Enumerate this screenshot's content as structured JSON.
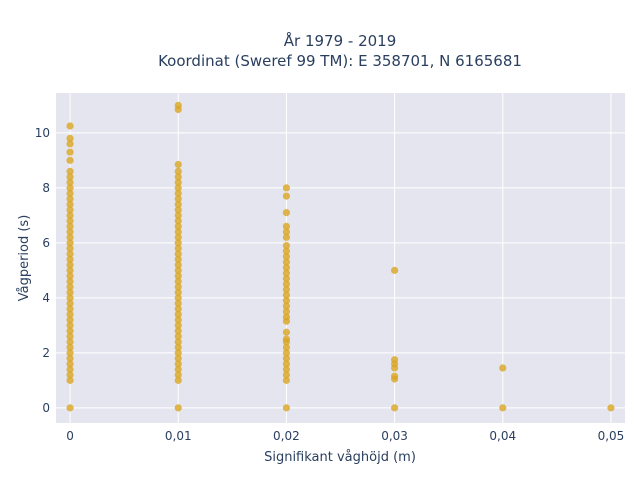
{
  "chart_data": {
    "type": "scatter",
    "title_line1": "År 1979 - 2019",
    "title_line2": "Koordinat (Sweref 99 TM): E 358701, N 6165681",
    "xlabel": "Signifikant våghöjd (m)",
    "ylabel": "Vågperiod (s)",
    "x_ticks": [
      0,
      0.01,
      0.02,
      0.03,
      0.04,
      0.05
    ],
    "x_tick_labels": [
      "0",
      "0,01",
      "0,02",
      "0,03",
      "0,04",
      "0,05"
    ],
    "y_ticks": [
      0,
      2,
      4,
      6,
      8,
      10
    ],
    "y_tick_labels": [
      "0",
      "2",
      "4",
      "6",
      "8",
      "10"
    ],
    "xlim": [
      -0.0013,
      0.0513
    ],
    "ylim": [
      -0.55,
      11.45
    ],
    "grid": true,
    "marker_color": "#DAA520",
    "plot_background": "#E5E5F0",
    "series": [
      {
        "points": [
          {
            "x": 0,
            "y": 0
          },
          {
            "x": 0,
            "y": 1.0
          },
          {
            "x": 0,
            "y": 1.2
          },
          {
            "x": 0,
            "y": 1.4
          },
          {
            "x": 0,
            "y": 1.6
          },
          {
            "x": 0,
            "y": 1.8
          },
          {
            "x": 0,
            "y": 2.0
          },
          {
            "x": 0,
            "y": 2.2
          },
          {
            "x": 0,
            "y": 2.4
          },
          {
            "x": 0,
            "y": 2.6
          },
          {
            "x": 0,
            "y": 2.8
          },
          {
            "x": 0,
            "y": 3.0
          },
          {
            "x": 0,
            "y": 3.2
          },
          {
            "x": 0,
            "y": 3.4
          },
          {
            "x": 0,
            "y": 3.6
          },
          {
            "x": 0,
            "y": 3.8
          },
          {
            "x": 0,
            "y": 4.0
          },
          {
            "x": 0,
            "y": 4.2
          },
          {
            "x": 0,
            "y": 4.4
          },
          {
            "x": 0,
            "y": 4.6
          },
          {
            "x": 0,
            "y": 4.8
          },
          {
            "x": 0,
            "y": 5.0
          },
          {
            "x": 0,
            "y": 5.2
          },
          {
            "x": 0,
            "y": 5.4
          },
          {
            "x": 0,
            "y": 5.6
          },
          {
            "x": 0,
            "y": 5.8
          },
          {
            "x": 0,
            "y": 6.0
          },
          {
            "x": 0,
            "y": 6.2
          },
          {
            "x": 0,
            "y": 6.4
          },
          {
            "x": 0,
            "y": 6.6
          },
          {
            "x": 0,
            "y": 6.8
          },
          {
            "x": 0,
            "y": 7.0
          },
          {
            "x": 0,
            "y": 7.2
          },
          {
            "x": 0,
            "y": 7.4
          },
          {
            "x": 0,
            "y": 7.6
          },
          {
            "x": 0,
            "y": 7.8
          },
          {
            "x": 0,
            "y": 8.0
          },
          {
            "x": 0,
            "y": 8.2
          },
          {
            "x": 0,
            "y": 8.4
          },
          {
            "x": 0,
            "y": 8.6
          },
          {
            "x": 0,
            "y": 9.0
          },
          {
            "x": 0,
            "y": 9.3
          },
          {
            "x": 0,
            "y": 9.6
          },
          {
            "x": 0,
            "y": 9.8
          },
          {
            "x": 0,
            "y": 10.25
          },
          {
            "x": 0.01,
            "y": 0
          },
          {
            "x": 0.01,
            "y": 1.0
          },
          {
            "x": 0.01,
            "y": 1.2
          },
          {
            "x": 0.01,
            "y": 1.4
          },
          {
            "x": 0.01,
            "y": 1.6
          },
          {
            "x": 0.01,
            "y": 1.8
          },
          {
            "x": 0.01,
            "y": 2.0
          },
          {
            "x": 0.01,
            "y": 2.2
          },
          {
            "x": 0.01,
            "y": 2.4
          },
          {
            "x": 0.01,
            "y": 2.6
          },
          {
            "x": 0.01,
            "y": 2.8
          },
          {
            "x": 0.01,
            "y": 3.0
          },
          {
            "x": 0.01,
            "y": 3.2
          },
          {
            "x": 0.01,
            "y": 3.4
          },
          {
            "x": 0.01,
            "y": 3.6
          },
          {
            "x": 0.01,
            "y": 3.8
          },
          {
            "x": 0.01,
            "y": 4.0
          },
          {
            "x": 0.01,
            "y": 4.2
          },
          {
            "x": 0.01,
            "y": 4.4
          },
          {
            "x": 0.01,
            "y": 4.6
          },
          {
            "x": 0.01,
            "y": 4.8
          },
          {
            "x": 0.01,
            "y": 5.0
          },
          {
            "x": 0.01,
            "y": 5.2
          },
          {
            "x": 0.01,
            "y": 5.4
          },
          {
            "x": 0.01,
            "y": 5.6
          },
          {
            "x": 0.01,
            "y": 5.8
          },
          {
            "x": 0.01,
            "y": 6.0
          },
          {
            "x": 0.01,
            "y": 6.2
          },
          {
            "x": 0.01,
            "y": 6.4
          },
          {
            "x": 0.01,
            "y": 6.6
          },
          {
            "x": 0.01,
            "y": 6.8
          },
          {
            "x": 0.01,
            "y": 7.0
          },
          {
            "x": 0.01,
            "y": 7.2
          },
          {
            "x": 0.01,
            "y": 7.4
          },
          {
            "x": 0.01,
            "y": 7.6
          },
          {
            "x": 0.01,
            "y": 7.8
          },
          {
            "x": 0.01,
            "y": 8.0
          },
          {
            "x": 0.01,
            "y": 8.2
          },
          {
            "x": 0.01,
            "y": 8.4
          },
          {
            "x": 0.01,
            "y": 8.6
          },
          {
            "x": 0.01,
            "y": 8.85
          },
          {
            "x": 0.01,
            "y": 10.85
          },
          {
            "x": 0.01,
            "y": 11.0
          },
          {
            "x": 0.02,
            "y": 0
          },
          {
            "x": 0.02,
            "y": 1.0
          },
          {
            "x": 0.02,
            "y": 1.2
          },
          {
            "x": 0.02,
            "y": 1.4
          },
          {
            "x": 0.02,
            "y": 1.6
          },
          {
            "x": 0.02,
            "y": 1.8
          },
          {
            "x": 0.02,
            "y": 2.0
          },
          {
            "x": 0.02,
            "y": 2.2
          },
          {
            "x": 0.02,
            "y": 2.4
          },
          {
            "x": 0.02,
            "y": 2.5
          },
          {
            "x": 0.02,
            "y": 2.75
          },
          {
            "x": 0.02,
            "y": 3.15
          },
          {
            "x": 0.02,
            "y": 3.3
          },
          {
            "x": 0.02,
            "y": 3.5
          },
          {
            "x": 0.02,
            "y": 3.7
          },
          {
            "x": 0.02,
            "y": 3.9
          },
          {
            "x": 0.02,
            "y": 4.1
          },
          {
            "x": 0.02,
            "y": 4.3
          },
          {
            "x": 0.02,
            "y": 4.5
          },
          {
            "x": 0.02,
            "y": 4.7
          },
          {
            "x": 0.02,
            "y": 4.9
          },
          {
            "x": 0.02,
            "y": 5.1
          },
          {
            "x": 0.02,
            "y": 5.3
          },
          {
            "x": 0.02,
            "y": 5.5
          },
          {
            "x": 0.02,
            "y": 5.7
          },
          {
            "x": 0.02,
            "y": 5.9
          },
          {
            "x": 0.02,
            "y": 6.2
          },
          {
            "x": 0.02,
            "y": 6.4
          },
          {
            "x": 0.02,
            "y": 6.6
          },
          {
            "x": 0.02,
            "y": 7.1
          },
          {
            "x": 0.02,
            "y": 7.7
          },
          {
            "x": 0.02,
            "y": 8.0
          },
          {
            "x": 0.03,
            "y": 0
          },
          {
            "x": 0.03,
            "y": 1.05
          },
          {
            "x": 0.03,
            "y": 1.15
          },
          {
            "x": 0.03,
            "y": 1.45
          },
          {
            "x": 0.03,
            "y": 1.6
          },
          {
            "x": 0.03,
            "y": 1.75
          },
          {
            "x": 0.03,
            "y": 5.0
          },
          {
            "x": 0.04,
            "y": 0
          },
          {
            "x": 0.04,
            "y": 1.45
          },
          {
            "x": 0.05,
            "y": 0
          }
        ]
      }
    ]
  }
}
